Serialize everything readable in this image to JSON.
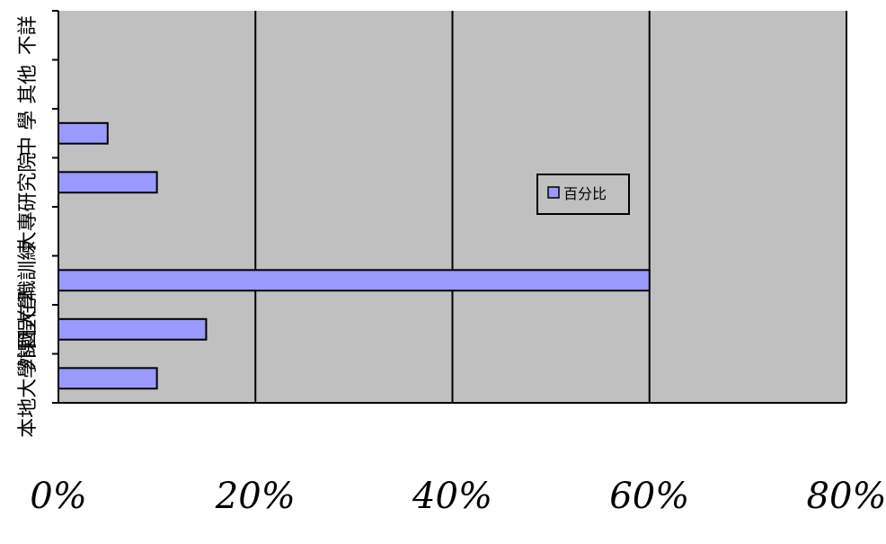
{
  "chart_data": {
    "type": "bar",
    "orientation": "horizontal",
    "categories": [
      "不詳",
      "其他",
      "中 學",
      "研究院",
      "大專",
      "在職訓練",
      "外國大學",
      "本地大學課程"
    ],
    "series": [
      {
        "name": "百分比",
        "values": [
          0,
          0,
          5,
          10,
          0,
          60,
          15,
          10
        ],
        "color": "#9999ff"
      }
    ],
    "x_ticks": [
      "0%",
      "20%",
      "40%",
      "60%",
      "80%"
    ],
    "xlim": [
      0,
      80
    ],
    "grid": "vertical",
    "legend_position": "right",
    "plot_background": "#c0c0c0",
    "bar_color": "#9999ff"
  }
}
